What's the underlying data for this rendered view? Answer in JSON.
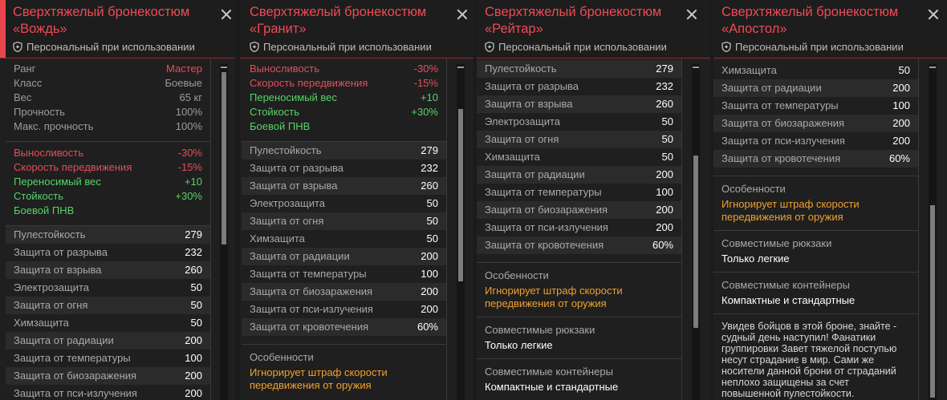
{
  "common": {
    "personal": "Персональный при использовании",
    "ignores_penalty": "Игнорирует штраф скорости передвижения от оружия",
    "compat_backpacks_label": "Совместимые рюкзаки",
    "compat_backpacks_value": "Только легкие",
    "compat_containers_label": "Совместимые контейнеры",
    "compat_containers_value": "Компактные и стандартные",
    "features_label": "Особенности"
  },
  "panels": [
    {
      "title": "Сверхтяжелый бронекостюм «Вождь»",
      "info": [
        {
          "k": "Ранг",
          "v": "Мастер"
        },
        {
          "k": "Класс",
          "v": "Боевые"
        },
        {
          "k": "Вес",
          "v": "65 кг"
        },
        {
          "k": "Прочность",
          "v": "100%"
        },
        {
          "k": "Макс. прочность",
          "v": "100%"
        }
      ],
      "mods": [
        {
          "k": "Выносливость",
          "v": "-30%",
          "c": "red"
        },
        {
          "k": "Скорость передвижения",
          "v": "-15%",
          "c": "red"
        },
        {
          "k": "Переносимый вес",
          "v": "+10",
          "c": "green"
        },
        {
          "k": "Стойкость",
          "v": "+30%",
          "c": "green"
        },
        {
          "k": "Боевой ПНВ",
          "v": "",
          "c": "green"
        }
      ],
      "stats": [
        {
          "k": "Пулестойкость",
          "v": "279"
        },
        {
          "k": "Защита от разрыва",
          "v": "232"
        },
        {
          "k": "Защита от взрыва",
          "v": "260"
        },
        {
          "k": "Электрозащита",
          "v": "50"
        },
        {
          "k": "Защита от огня",
          "v": "50"
        },
        {
          "k": "Химзащита",
          "v": "50"
        },
        {
          "k": "Защита от радиации",
          "v": "200"
        },
        {
          "k": "Защита от температуры",
          "v": "100"
        },
        {
          "k": "Защита от биозаражения",
          "v": "200"
        },
        {
          "k": "Защита от пси-излучения",
          "v": "200"
        }
      ]
    },
    {
      "title": "Сверхтяжелый бронекостюм «Гранит»",
      "mods": [
        {
          "k": "Выносливость",
          "v": "-30%",
          "c": "red"
        },
        {
          "k": "Скорость передвижения",
          "v": "-15%",
          "c": "red"
        },
        {
          "k": "Переносимый вес",
          "v": "+10",
          "c": "green"
        },
        {
          "k": "Стойкость",
          "v": "+30%",
          "c": "green"
        },
        {
          "k": "Боевой ПНВ",
          "v": "",
          "c": "green"
        }
      ],
      "stats": [
        {
          "k": "Пулестойкость",
          "v": "279"
        },
        {
          "k": "Защита от разрыва",
          "v": "232"
        },
        {
          "k": "Защита от взрыва",
          "v": "260"
        },
        {
          "k": "Электрозащита",
          "v": "50"
        },
        {
          "k": "Защита от огня",
          "v": "50"
        },
        {
          "k": "Химзащита",
          "v": "50"
        },
        {
          "k": "Защита от радиации",
          "v": "200"
        },
        {
          "k": "Защита от температуры",
          "v": "100"
        },
        {
          "k": "Защита от биозаражения",
          "v": "200"
        },
        {
          "k": "Защита от пси-излучения",
          "v": "200"
        },
        {
          "k": "Защита от кровотечения",
          "v": "60%"
        }
      ]
    },
    {
      "title": "Сверхтяжелый бронекостюм «Рейтар»",
      "stats": [
        {
          "k": "Пулестойкость",
          "v": "279"
        },
        {
          "k": "Защита от разрыва",
          "v": "232"
        },
        {
          "k": "Защита от взрыва",
          "v": "260"
        },
        {
          "k": "Электрозащита",
          "v": "50"
        },
        {
          "k": "Защита от огня",
          "v": "50"
        },
        {
          "k": "Химзащита",
          "v": "50"
        },
        {
          "k": "Защита от радиации",
          "v": "200"
        },
        {
          "k": "Защита от температуры",
          "v": "100"
        },
        {
          "k": "Защита от биозаражения",
          "v": "200"
        },
        {
          "k": "Защита от пси-излучения",
          "v": "200"
        },
        {
          "k": "Защита от кровотечения",
          "v": "60%"
        }
      ]
    },
    {
      "title": "Сверхтяжелый бронекостюм «Апостол»",
      "stats": [
        {
          "k": "Химзащита",
          "v": "50"
        },
        {
          "k": "Защита от радиации",
          "v": "200"
        },
        {
          "k": "Защита от температуры",
          "v": "100"
        },
        {
          "k": "Защита от биозаражения",
          "v": "200"
        },
        {
          "k": "Защита от пси-излучения",
          "v": "200"
        },
        {
          "k": "Защита от кровотечения",
          "v": "60%"
        }
      ],
      "lore": "Увидев бойцов в этой броне, знайте - судный день наступил! Фанатики группировки Завет тяжелой поступью несут страдание в мир. Сами же носители данной брони от страданий неплохо защищены за счет повышенной пулестойкости."
    }
  ]
}
